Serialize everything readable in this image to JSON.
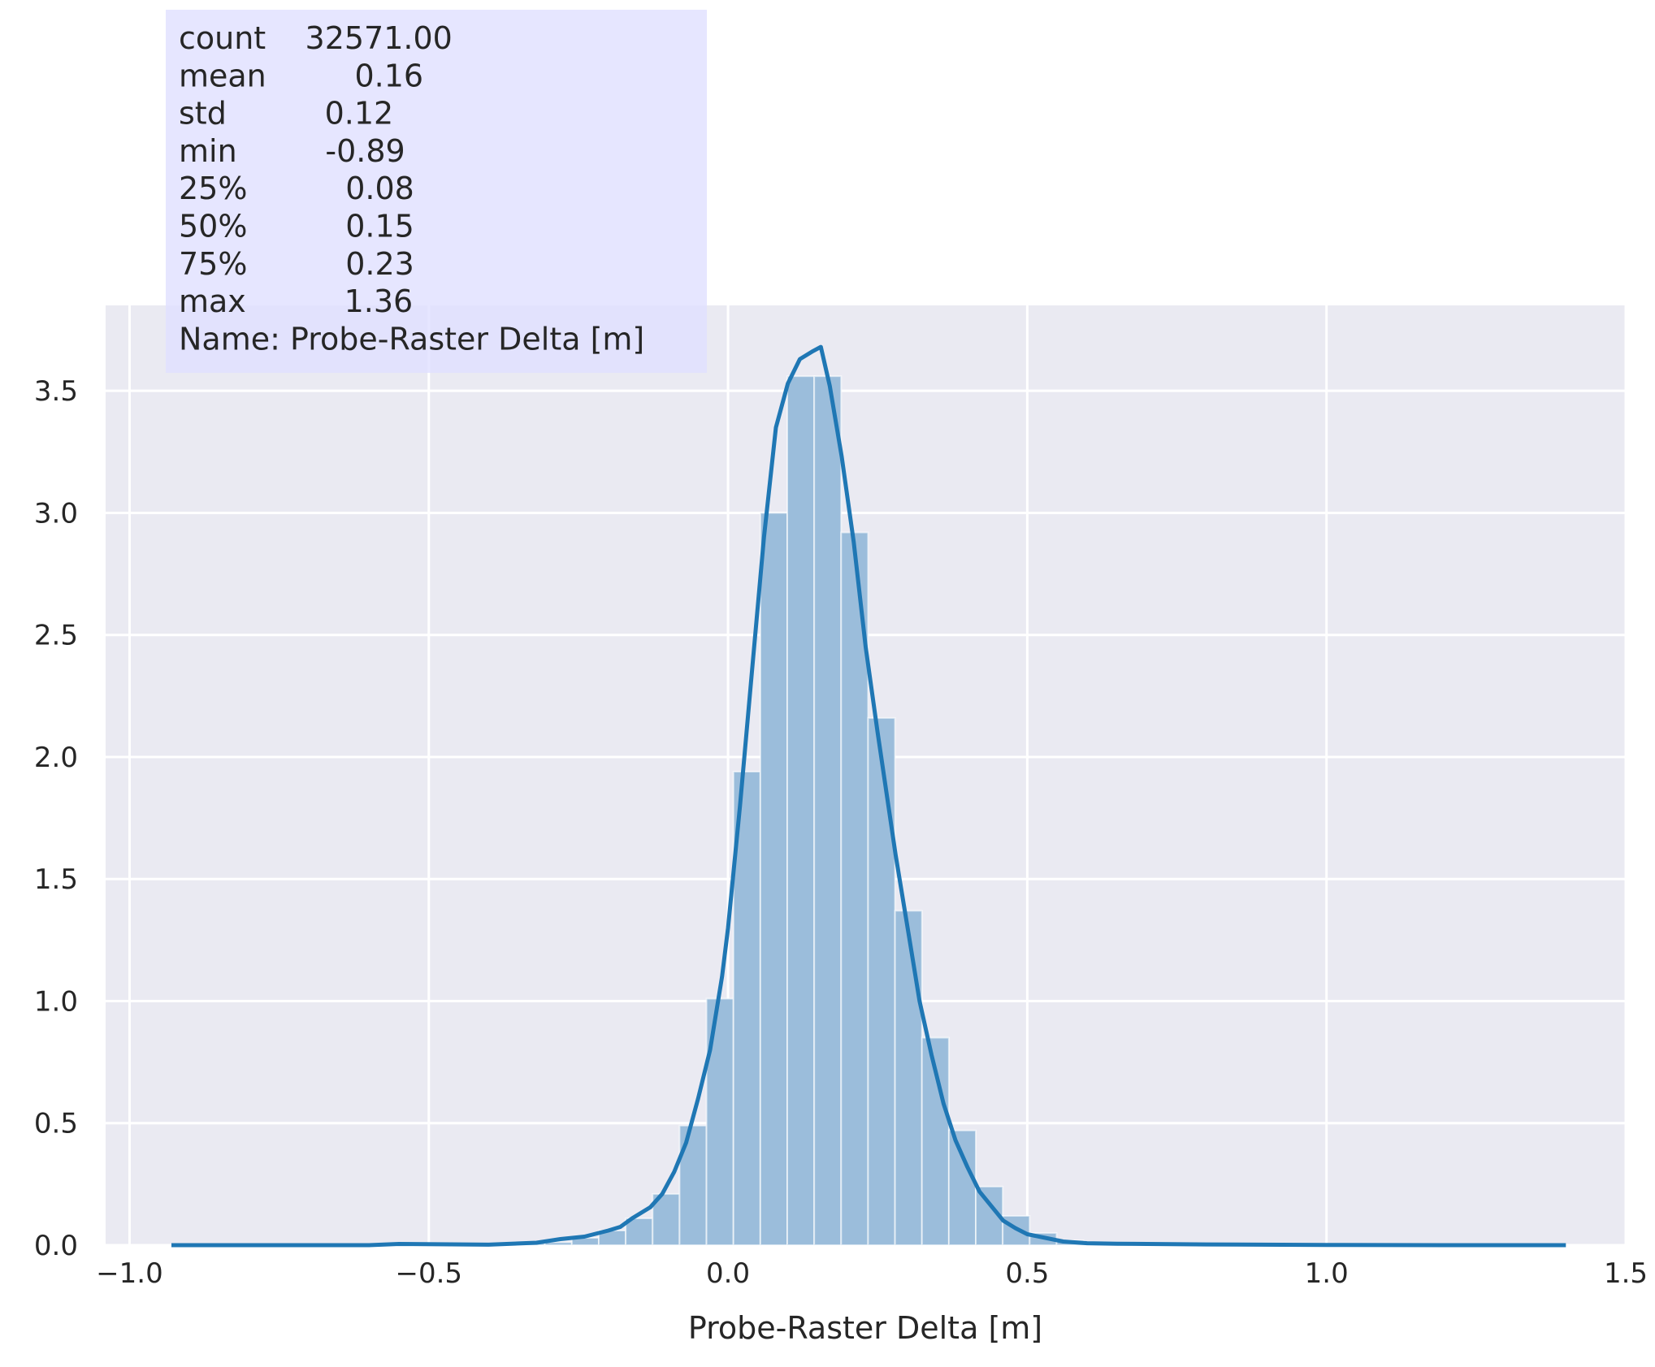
{
  "chart_data": {
    "type": "bar",
    "subtype": "histogram-with-kde",
    "title": "",
    "xlabel": "Probe-Raster Delta [m]",
    "ylabel": "",
    "xlim": [
      -1.04,
      1.5
    ],
    "ylim": [
      0,
      3.85
    ],
    "xticks": [
      -1.0,
      -0.5,
      0.0,
      0.5,
      1.0,
      1.5
    ],
    "xtick_labels": [
      "−1.0",
      "−0.5",
      "0.0",
      "0.5",
      "1.0",
      "1.5"
    ],
    "yticks": [
      0.0,
      0.5,
      1.0,
      1.5,
      2.0,
      2.5,
      3.0,
      3.5
    ],
    "ytick_labels": [
      "0.0",
      "0.5",
      "1.0",
      "1.5",
      "2.0",
      "2.5",
      "3.0",
      "3.5"
    ],
    "grid": true,
    "background": "#eaeaf2",
    "bar_color": "#9bbddb",
    "line_color": "#1f77b4",
    "histogram": {
      "bin_edges": [
        -0.891,
        -0.846,
        -0.801,
        -0.756,
        -0.711,
        -0.666,
        -0.621,
        -0.576,
        -0.531,
        -0.486,
        -0.441,
        -0.396,
        -0.351,
        -0.306,
        -0.261,
        -0.216,
        -0.171,
        -0.126,
        -0.081,
        -0.036,
        0.009,
        0.054,
        0.099,
        0.144,
        0.189,
        0.234,
        0.279,
        0.324,
        0.369,
        0.414,
        0.459,
        0.504,
        0.549,
        0.594,
        0.639,
        0.684,
        0.729,
        0.774,
        0.819,
        0.864,
        0.909,
        0.954,
        0.999,
        1.044,
        1.089,
        1.134,
        1.179,
        1.224,
        1.269,
        1.314,
        1.359
      ],
      "densities": [
        0.002,
        0.002,
        0.001,
        0.001,
        0.002,
        0.002,
        0.002,
        0.004,
        0.004,
        0.004,
        0.004,
        0.004,
        0.008,
        0.012,
        0.03,
        0.06,
        0.11,
        0.21,
        0.49,
        1.01,
        1.94,
        3.0,
        3.56,
        3.56,
        2.92,
        2.16,
        1.37,
        0.85,
        0.47,
        0.24,
        0.12,
        0.05,
        0.02,
        0.01,
        0.005,
        0.004,
        0.002,
        0.002,
        0.002,
        0.002,
        0.002,
        0.001,
        0.001,
        0.001,
        0.001,
        0.001,
        0.001,
        0.001,
        0.001,
        0.001
      ]
    },
    "kde": {
      "x": [
        -0.93,
        -0.8,
        -0.6,
        -0.55,
        -0.4,
        -0.32,
        -0.28,
        -0.24,
        -0.2,
        -0.18,
        -0.16,
        -0.13,
        -0.11,
        -0.09,
        -0.07,
        -0.05,
        -0.03,
        -0.01,
        0.0,
        0.02,
        0.04,
        0.06,
        0.08,
        0.1,
        0.12,
        0.14,
        0.155,
        0.17,
        0.19,
        0.21,
        0.23,
        0.25,
        0.28,
        0.3,
        0.32,
        0.34,
        0.36,
        0.38,
        0.4,
        0.42,
        0.44,
        0.46,
        0.48,
        0.5,
        0.53,
        0.56,
        0.6,
        0.65,
        0.8,
        1.0,
        1.2,
        1.4
      ],
      "y": [
        0.0,
        0.0,
        0.0,
        0.005,
        0.002,
        0.01,
        0.025,
        0.035,
        0.06,
        0.075,
        0.11,
        0.155,
        0.21,
        0.3,
        0.42,
        0.6,
        0.8,
        1.1,
        1.3,
        1.8,
        2.35,
        2.9,
        3.35,
        3.53,
        3.63,
        3.66,
        3.68,
        3.52,
        3.23,
        2.88,
        2.45,
        2.1,
        1.6,
        1.3,
        1.0,
        0.78,
        0.58,
        0.43,
        0.32,
        0.22,
        0.16,
        0.1,
        0.07,
        0.045,
        0.03,
        0.015,
        0.008,
        0.006,
        0.003,
        0.001,
        0.0,
        0.0
      ]
    },
    "annotation": {
      "box_color": "#e0e0ff",
      "lines": [
        "count    32571.00",
        "mean         0.16",
        "std          0.12",
        "min         -0.89",
        "25%          0.08",
        "50%          0.15",
        "75%          0.23",
        "max          1.36",
        "Name: Probe-Raster Delta [m]"
      ]
    }
  }
}
